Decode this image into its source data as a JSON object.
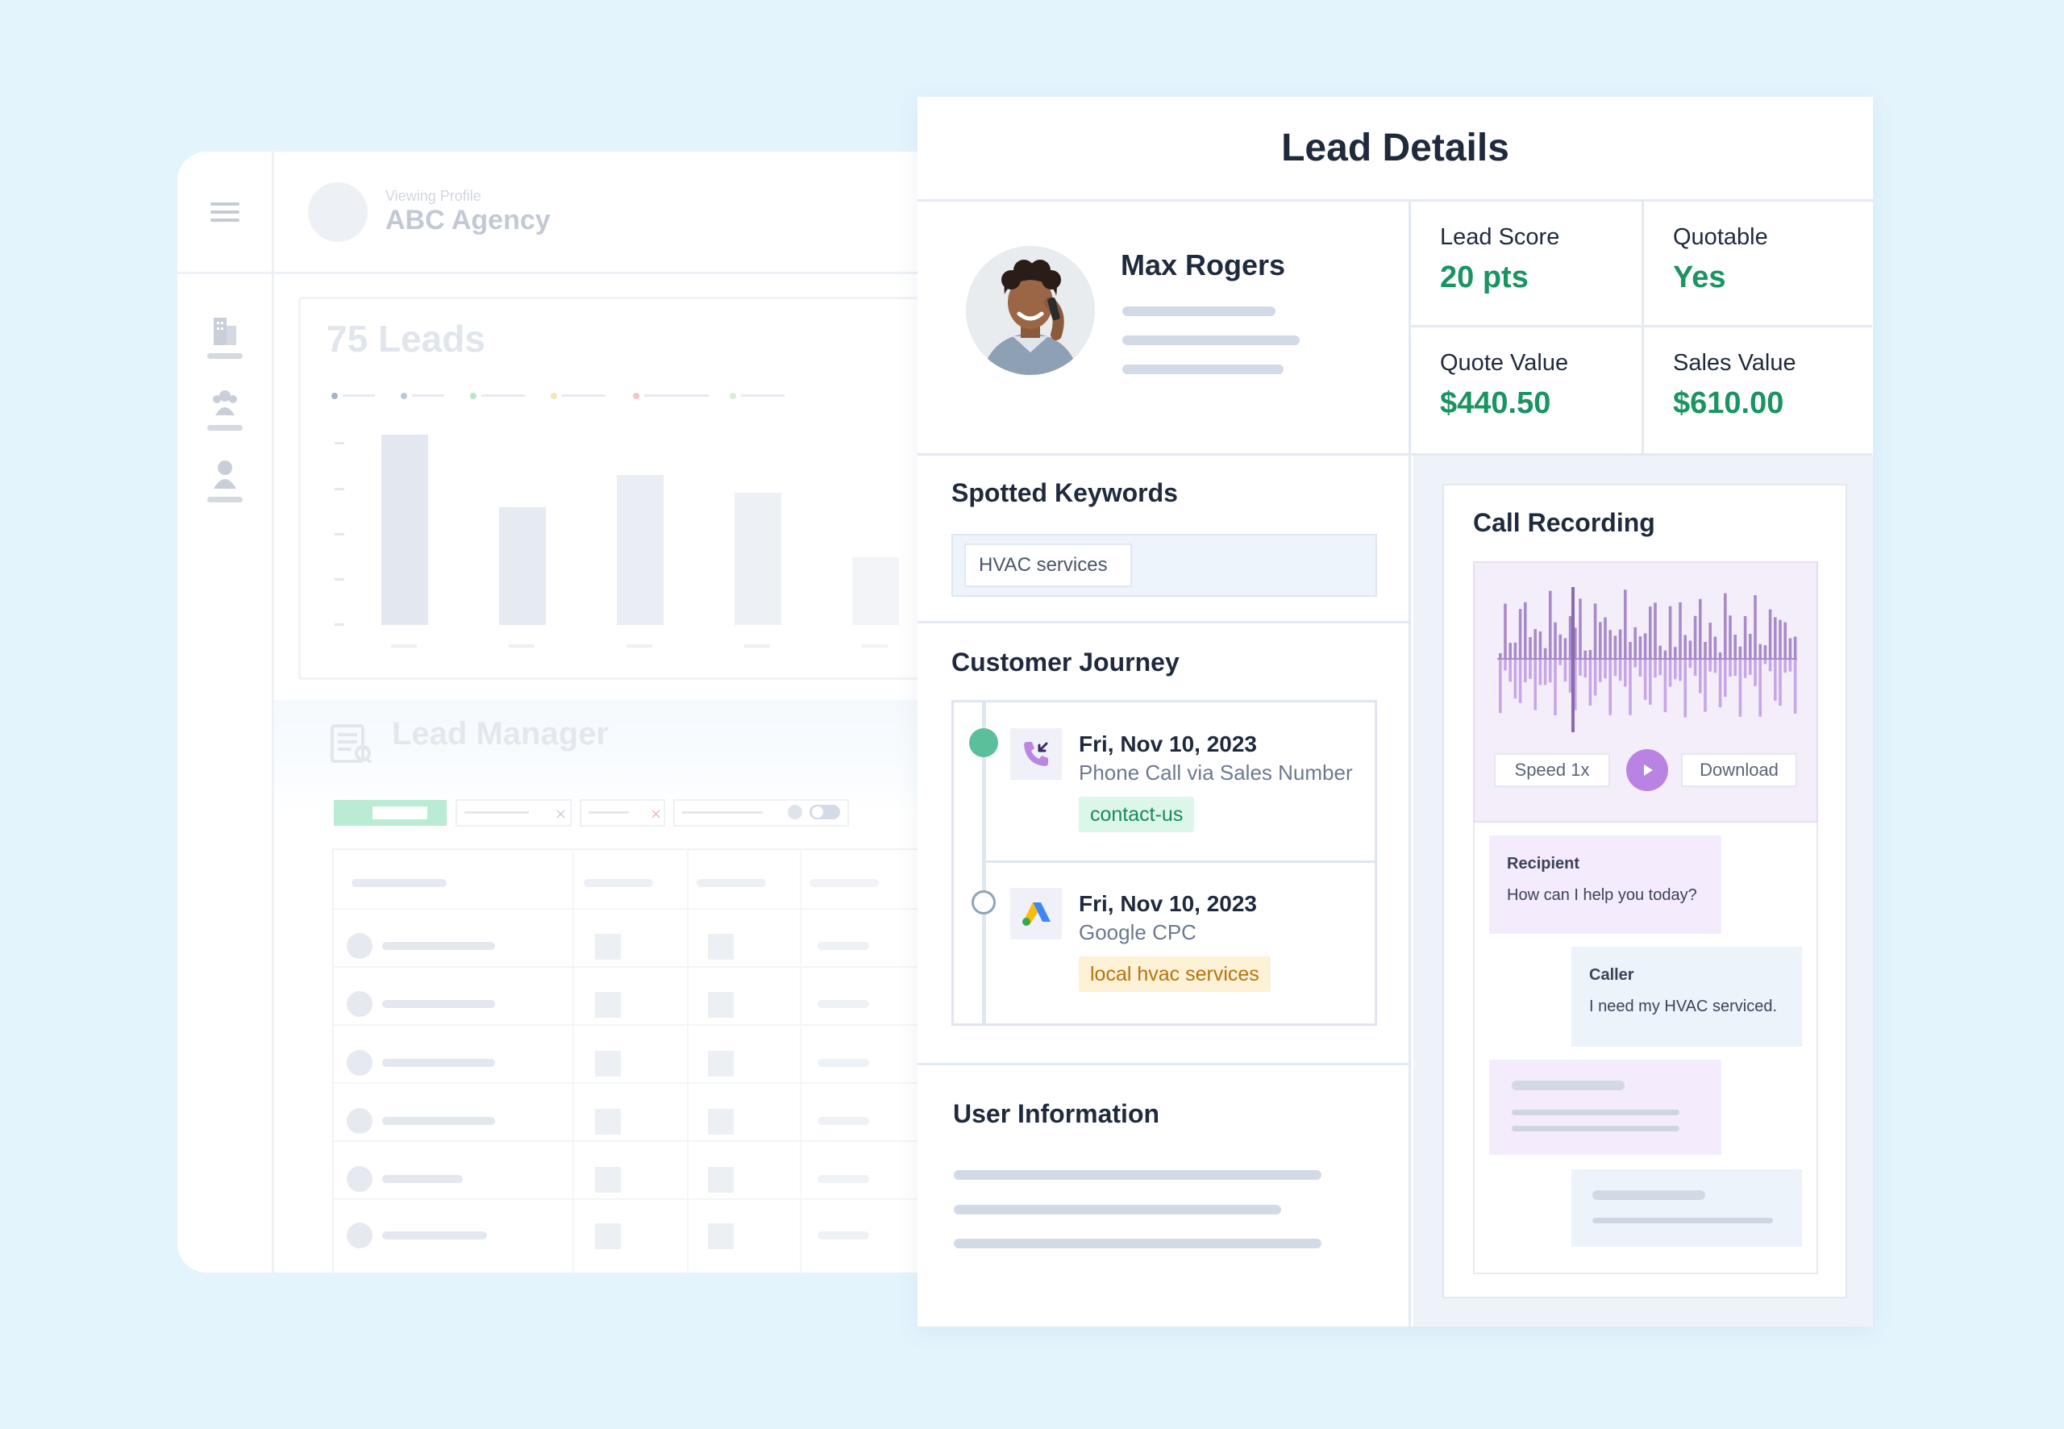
{
  "background": {
    "viewing_label": "Viewing Profile",
    "agency_name": "ABC Agency",
    "leads_title": "75 Leads",
    "lead_manager_title": "Lead Manager"
  },
  "panel": {
    "title": "Lead Details"
  },
  "profile": {
    "name": "Max Rogers"
  },
  "metrics": {
    "lead_score_label": "Lead Score",
    "lead_score_value": "20 pts",
    "quotable_label": "Quotable",
    "quotable_value": "Yes",
    "quote_value_label": "Quote Value",
    "quote_value_value": "$440.50",
    "sales_value_label": "Sales Value",
    "sales_value_value": "$610.00"
  },
  "keywords": {
    "title": "Spotted Keywords",
    "items": [
      "HVAC services"
    ]
  },
  "journey": {
    "title": "Customer Journey",
    "events": [
      {
        "date": "Fri, Nov 10, 2023",
        "source": "Phone Call via Sales Number",
        "tag": "contact-us",
        "icon": "phone-incoming-icon"
      },
      {
        "date": "Fri, Nov 10, 2023",
        "source": "Google CPC",
        "tag": "local hvac services",
        "icon": "google-ads-icon"
      }
    ]
  },
  "user_info": {
    "title": "User Information"
  },
  "recording": {
    "title": "Call Recording",
    "speed_label": "Speed 1x",
    "download_label": "Download",
    "transcript": [
      {
        "who": "Recipient",
        "text": "How can I help you today?"
      },
      {
        "who": "Caller",
        "text": "I need my HVAC serviced."
      }
    ]
  },
  "colors": {
    "page_bg": "#e3f4fd",
    "metric_green": "#1a9461",
    "play_purple": "#b983e3",
    "wave_purple": "#a98ac9"
  }
}
